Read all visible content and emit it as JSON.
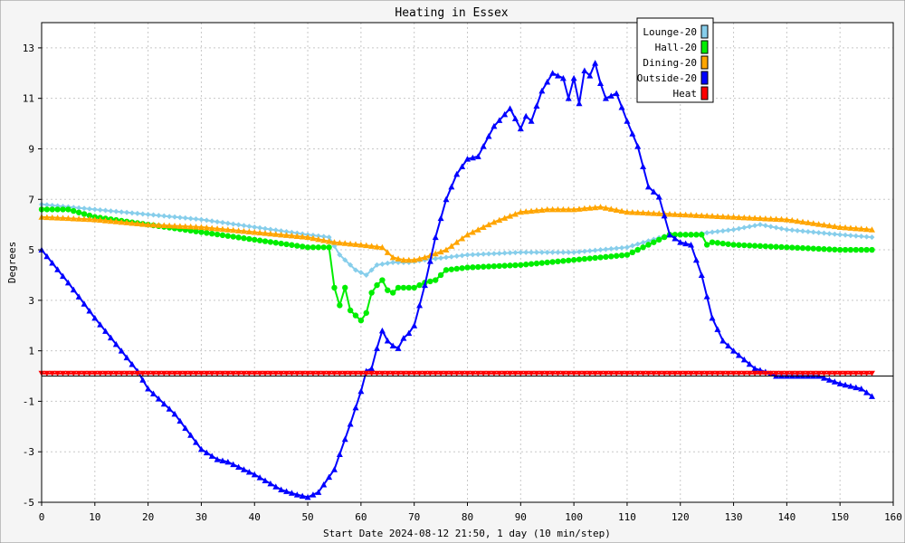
{
  "chart_data": {
    "type": "line",
    "title": "Heating in Essex",
    "xlabel": "Start Date 2024-08-12 21:50, 1 day (10 min/step)",
    "ylabel": "Degrees",
    "xlim": [
      0,
      160
    ],
    "ylim": [
      -5,
      14
    ],
    "x_ticks": [
      0,
      10,
      20,
      30,
      40,
      50,
      60,
      70,
      80,
      90,
      100,
      110,
      120,
      130,
      140,
      150,
      160
    ],
    "y_ticks": [
      -5,
      -3,
      -1,
      1,
      3,
      5,
      7,
      9,
      11,
      13
    ],
    "grid": true,
    "legend_position": "top-right",
    "series": [
      {
        "name": "Lounge-20",
        "color": "#87ceeb",
        "marker": "diamond",
        "x": [
          0,
          10,
          20,
          30,
          40,
          50,
          54,
          56,
          59,
          61,
          63,
          66,
          69,
          72,
          76,
          80,
          90,
          100,
          110,
          118,
          122,
          126,
          130,
          135,
          140,
          150,
          156
        ],
        "y": [
          6.8,
          6.6,
          6.4,
          6.2,
          5.9,
          5.6,
          5.5,
          4.8,
          4.2,
          4.0,
          4.4,
          4.5,
          4.5,
          4.6,
          4.7,
          4.8,
          4.9,
          4.9,
          5.1,
          5.6,
          5.6,
          5.7,
          5.8,
          6.0,
          5.8,
          5.6,
          5.5
        ]
      },
      {
        "name": "Hall-20",
        "color": "#00ee00",
        "marker": "circle",
        "x": [
          0,
          5,
          10,
          20,
          30,
          40,
          50,
          54,
          55,
          56,
          57,
          58,
          59,
          60,
          61,
          62,
          63,
          64,
          65,
          66,
          67,
          68,
          70,
          72,
          74,
          76,
          80,
          90,
          100,
          110,
          114,
          118,
          120,
          124,
          125,
          126,
          130,
          140,
          150,
          156
        ],
        "y": [
          6.6,
          6.6,
          6.3,
          6.0,
          5.7,
          5.4,
          5.1,
          5.1,
          3.5,
          2.8,
          3.5,
          2.6,
          2.4,
          2.2,
          2.5,
          3.3,
          3.6,
          3.8,
          3.4,
          3.3,
          3.5,
          3.5,
          3.5,
          3.7,
          3.8,
          4.2,
          4.3,
          4.4,
          4.6,
          4.8,
          5.2,
          5.6,
          5.6,
          5.6,
          5.2,
          5.3,
          5.2,
          5.1,
          5.0,
          5.0
        ]
      },
      {
        "name": "Dining-20",
        "color": "#ffa500",
        "marker": "triangle",
        "x": [
          0,
          10,
          20,
          30,
          40,
          50,
          55,
          60,
          64,
          66,
          68,
          70,
          72,
          76,
          80,
          85,
          90,
          95,
          100,
          105,
          110,
          120,
          130,
          140,
          150,
          156
        ],
        "y": [
          6.3,
          6.2,
          6.0,
          5.9,
          5.7,
          5.5,
          5.3,
          5.2,
          5.1,
          4.7,
          4.6,
          4.6,
          4.7,
          5.0,
          5.6,
          6.1,
          6.5,
          6.6,
          6.6,
          6.7,
          6.5,
          6.4,
          6.3,
          6.2,
          5.9,
          5.8
        ]
      },
      {
        "name": "Outside-20",
        "color": "#0000ff",
        "marker": "triangle",
        "x": [
          0,
          5,
          10,
          15,
          18,
          20,
          25,
          30,
          33,
          35,
          40,
          45,
          48,
          50,
          52,
          55,
          58,
          60,
          61,
          62,
          63,
          64,
          65,
          66,
          67,
          68,
          69,
          70,
          72,
          74,
          76,
          78,
          80,
          82,
          85,
          88,
          90,
          91,
          92,
          94,
          96,
          98,
          99,
          100,
          101,
          102,
          103,
          104,
          105,
          106,
          108,
          110,
          112,
          114,
          116,
          118,
          120,
          122,
          124,
          126,
          128,
          130,
          134,
          137,
          138,
          140,
          146,
          150,
          154,
          156
        ],
        "y": [
          5.0,
          3.7,
          2.3,
          1.0,
          0.2,
          -0.5,
          -1.5,
          -2.9,
          -3.3,
          -3.4,
          -3.9,
          -4.5,
          -4.7,
          -4.8,
          -4.6,
          -3.7,
          -1.9,
          -0.6,
          0.2,
          0.3,
          1.1,
          1.8,
          1.4,
          1.2,
          1.1,
          1.5,
          1.7,
          2.0,
          3.6,
          5.5,
          7.0,
          8.0,
          8.6,
          8.7,
          9.9,
          10.6,
          9.8,
          10.3,
          10.1,
          11.3,
          12.0,
          11.8,
          11.0,
          11.8,
          10.8,
          12.1,
          11.9,
          12.4,
          11.6,
          11.0,
          11.2,
          10.1,
          9.1,
          7.5,
          7.1,
          5.6,
          5.3,
          5.2,
          4.0,
          2.3,
          1.4,
          1.0,
          0.3,
          0.1,
          0.0,
          0.0,
          0.0,
          -0.3,
          -0.5,
          -0.8
        ]
      },
      {
        "name": "Heat",
        "color": "#ff0000",
        "marker": "triangle-down",
        "x": [
          0,
          156
        ],
        "y": [
          0.1,
          0.1
        ]
      }
    ]
  }
}
